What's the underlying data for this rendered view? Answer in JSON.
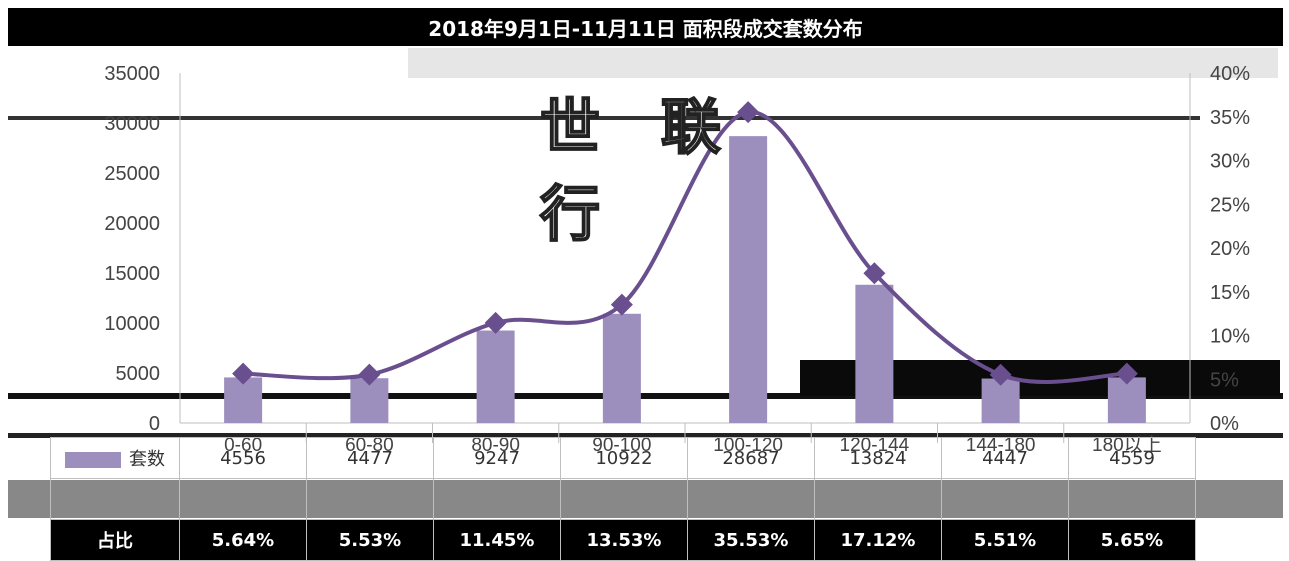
{
  "title": "2018年9月1日-11月11日 面积段成交套数分布",
  "watermark": "世 联 行",
  "colors": {
    "bar": "#9c8fbd",
    "line": "#6a4f8f",
    "marker": "#6a4f8f",
    "title_bg": "#000000"
  },
  "chart_data": {
    "type": "bar",
    "categories": [
      "0-60",
      "60-80",
      "80-90",
      "90-100",
      "100-120",
      "120-144",
      "144-180",
      "180以上"
    ],
    "series": [
      {
        "name": "套数",
        "values": [
          4556,
          4477,
          9247,
          10922,
          28687,
          13824,
          4447,
          4559
        ],
        "axis": "left"
      },
      {
        "name": "占比",
        "values": [
          5.64,
          5.53,
          11.45,
          13.53,
          35.53,
          17.12,
          5.51,
          5.65
        ],
        "axis": "right",
        "type": "line"
      }
    ],
    "ylim": [
      0,
      35000
    ],
    "y2lim": [
      0,
      40
    ],
    "yticks": [
      0,
      5000,
      10000,
      15000,
      20000,
      25000,
      30000,
      35000
    ],
    "y2ticks": [
      "0%",
      "5%",
      "10%",
      "15%",
      "20%",
      "25%",
      "30%",
      "35%",
      "40%"
    ]
  },
  "table": {
    "row1_label": "套数",
    "row1_values": [
      "4556",
      "4477",
      "9247",
      "10922",
      "28687",
      "13824",
      "4447",
      "4559"
    ],
    "row2_label": "占比",
    "row2_values": [
      "5.64%",
      "5.53%",
      "11.45%",
      "13.53%",
      "35.53%",
      "17.12%",
      "5.51%",
      "5.65%"
    ]
  }
}
